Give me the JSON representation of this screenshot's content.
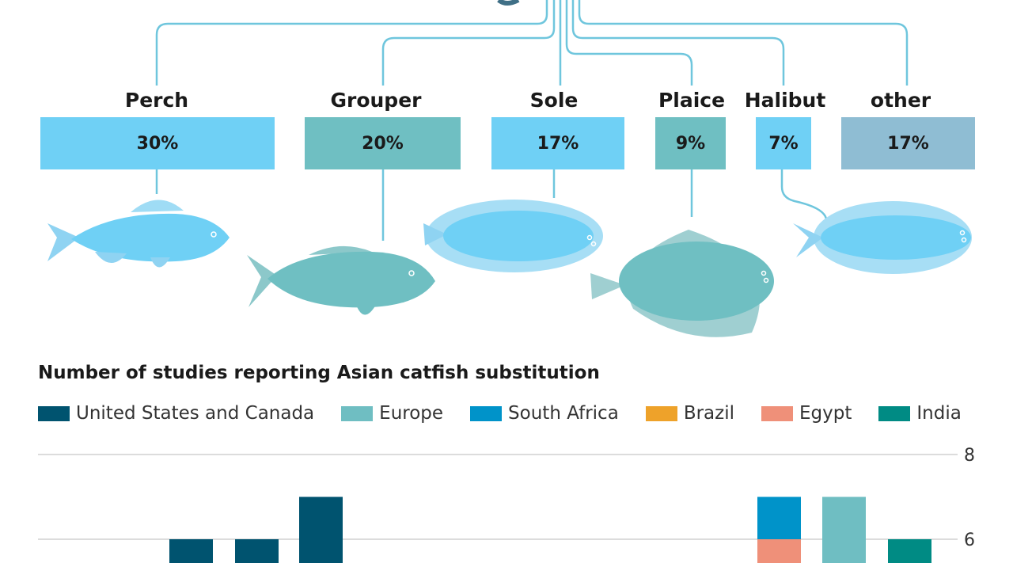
{
  "species": [
    {
      "name": "Perch",
      "share": "30%",
      "color": "#6fd0f5"
    },
    {
      "name": "Grouper",
      "share": "20%",
      "color": "#6fbfc2"
    },
    {
      "name": "Sole",
      "share": "17%",
      "color": "#6fd0f5"
    },
    {
      "name": "Plaice",
      "share": "9%",
      "color": "#6fbfc2"
    },
    {
      "name": "Halibut",
      "share": "7%",
      "color": "#6fd0f5"
    },
    {
      "name": "other",
      "share": "17%",
      "color": "#8fbdd3"
    }
  ],
  "chart_data": {
    "type": "bar",
    "title": "Number of studies reporting Asian catfish substitution",
    "legend": [
      {
        "name": "United States and Canada",
        "color": "#00536f"
      },
      {
        "name": "Europe",
        "color": "#6fbec2"
      },
      {
        "name": "South Africa",
        "color": "#0093c9"
      },
      {
        "name": "Brazil",
        "color": "#eea22a"
      },
      {
        "name": "Egypt",
        "color": "#ef9079"
      },
      {
        "name": "India",
        "color": "#008b84"
      }
    ],
    "y_ticks": [
      6,
      8
    ],
    "ylim": [
      4,
      8
    ],
    "grid": true,
    "bars": [
      {
        "series": "United States and Canada",
        "value": 6
      },
      {
        "series": "United States and Canada",
        "value": 6
      },
      {
        "series": "United States and Canada",
        "value": 7
      },
      {
        "stack": [
          {
            "series": "Egypt",
            "value": 6
          },
          {
            "series": "South Africa",
            "value": 1
          }
        ]
      },
      {
        "series": "Europe",
        "value": 7
      },
      {
        "series": "India",
        "value": 6
      }
    ]
  }
}
